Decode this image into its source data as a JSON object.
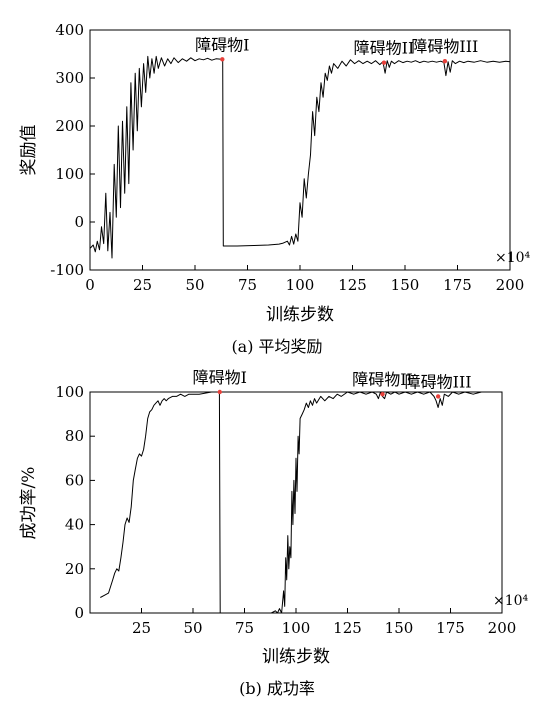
{
  "chart_data": [
    {
      "type": "line",
      "caption": "(a) 平均奖励",
      "xlabel": "训练步数",
      "ylabel": "奖励值",
      "x_multiplier": "×10⁴",
      "xlim": [
        0,
        200
      ],
      "ylim": [
        -100,
        400
      ],
      "xticks": [
        0,
        25,
        50,
        75,
        100,
        125,
        150,
        175,
        200
      ],
      "yticks": [
        -100,
        0,
        100,
        200,
        300,
        400
      ],
      "grid": false,
      "series": [
        {
          "color": "#000000",
          "points": [
            [
              0,
              -55
            ],
            [
              1.5,
              -48
            ],
            [
              2.5,
              -62
            ],
            [
              3.5,
              -40
            ],
            [
              4.5,
              -58
            ],
            [
              5.5,
              -10
            ],
            [
              6.5,
              -45
            ],
            [
              7.5,
              60
            ],
            [
              8.5,
              -60
            ],
            [
              9.5,
              20
            ],
            [
              10.5,
              -75
            ],
            [
              11.5,
              120
            ],
            [
              12.5,
              10
            ],
            [
              13.5,
              200
            ],
            [
              14.5,
              30
            ],
            [
              15.5,
              210
            ],
            [
              16.5,
              60
            ],
            [
              17.5,
              240
            ],
            [
              18.5,
              80
            ],
            [
              19.5,
              290
            ],
            [
              20.5,
              150
            ],
            [
              21.5,
              310
            ],
            [
              22.5,
              190
            ],
            [
              23.5,
              320
            ],
            [
              24.5,
              240
            ],
            [
              25.5,
              330
            ],
            [
              26.5,
              270
            ],
            [
              27.5,
              345
            ],
            [
              28.5,
              300
            ],
            [
              29.5,
              340
            ],
            [
              30.5,
              310
            ],
            [
              31.5,
              345
            ],
            [
              32.5,
              320
            ],
            [
              34,
              342
            ],
            [
              35.5,
              325
            ],
            [
              37,
              340
            ],
            [
              38.5,
              330
            ],
            [
              40,
              342
            ],
            [
              42,
              332
            ],
            [
              44,
              340
            ],
            [
              46,
              335
            ],
            [
              48,
              342
            ],
            [
              50,
              336
            ],
            [
              52,
              340
            ],
            [
              54,
              338
            ],
            [
              56,
              341
            ],
            [
              58,
              337
            ],
            [
              60,
              340
            ],
            [
              62.5,
              339
            ],
            [
              63.2,
              339
            ],
            [
              63.5,
              -50
            ],
            [
              70,
              -50
            ],
            [
              78,
              -49
            ],
            [
              85,
              -48
            ],
            [
              90,
              -46
            ],
            [
              92,
              -44
            ],
            [
              94,
              -40
            ],
            [
              95,
              -48
            ],
            [
              96,
              -30
            ],
            [
              97,
              -46
            ],
            [
              98,
              -25
            ],
            [
              99,
              -40
            ],
            [
              100,
              40
            ],
            [
              101,
              10
            ],
            [
              102,
              90
            ],
            [
              103,
              50
            ],
            [
              104,
              100
            ],
            [
              105,
              140
            ],
            [
              106,
              230
            ],
            [
              107,
              180
            ],
            [
              108,
              260
            ],
            [
              109,
              230
            ],
            [
              110,
              290
            ],
            [
              111,
              260
            ],
            [
              112,
              310
            ],
            [
              113,
              295
            ],
            [
              114,
              325
            ],
            [
              115,
              310
            ],
            [
              116,
              330
            ],
            [
              118,
              320
            ],
            [
              120,
              335
            ],
            [
              122,
              325
            ],
            [
              124,
              338
            ],
            [
              126,
              330
            ],
            [
              128,
              336
            ],
            [
              130,
              330
            ],
            [
              132,
              335
            ],
            [
              134,
              330
            ],
            [
              136,
              336
            ],
            [
              138,
              328
            ],
            [
              139.5,
              334
            ],
            [
              140.5,
              310
            ],
            [
              141.5,
              336
            ],
            [
              142.5,
              322
            ],
            [
              143.5,
              335
            ],
            [
              145,
              330
            ],
            [
              147,
              336
            ],
            [
              149,
              332
            ],
            [
              151,
              335
            ],
            [
              153,
              333
            ],
            [
              155,
              336
            ],
            [
              157,
              332
            ],
            [
              159,
              335
            ],
            [
              161,
              333
            ],
            [
              163,
              335
            ],
            [
              165,
              333
            ],
            [
              167,
              335
            ],
            [
              168.5,
              332
            ],
            [
              169.5,
              305
            ],
            [
              170.5,
              334
            ],
            [
              171.5,
              312
            ],
            [
              172.5,
              336
            ],
            [
              174,
              330
            ],
            [
              176,
              335
            ],
            [
              178,
              332
            ],
            [
              180,
              335
            ],
            [
              183,
              333
            ],
            [
              186,
              336
            ],
            [
              189,
              333
            ],
            [
              192,
              335
            ],
            [
              195,
              333
            ],
            [
              198,
              335
            ],
            [
              200,
              334
            ]
          ]
        }
      ],
      "annotations": [
        {
          "label": "障碍物I",
          "x": 63,
          "y": 339
        },
        {
          "label": "障碍物II",
          "x": 140,
          "y": 332
        },
        {
          "label": "障碍物III",
          "x": 169,
          "y": 335
        }
      ],
      "marker_color": "#e8403a"
    },
    {
      "type": "line",
      "caption": "(b) 成功率",
      "xlabel": "训练步数",
      "ylabel": "成功率/%",
      "x_multiplier": "×10⁴",
      "xlim": [
        0,
        200
      ],
      "ylim": [
        0,
        100
      ],
      "xticks": [
        25,
        50,
        75,
        100,
        125,
        150,
        175,
        200
      ],
      "yticks": [
        0,
        20,
        40,
        60,
        80,
        100
      ],
      "grid": false,
      "series": [
        {
          "color": "#000000",
          "points": [
            [
              5,
              7
            ],
            [
              7,
              8
            ],
            [
              9,
              9
            ],
            [
              10,
              12
            ],
            [
              11,
              15
            ],
            [
              12,
              18
            ],
            [
              13,
              20
            ],
            [
              14,
              19
            ],
            [
              15,
              25
            ],
            [
              16,
              32
            ],
            [
              17,
              40
            ],
            [
              18,
              43
            ],
            [
              19,
              41
            ],
            [
              20,
              48
            ],
            [
              21,
              60
            ],
            [
              22,
              65
            ],
            [
              23,
              70
            ],
            [
              24,
              72
            ],
            [
              25,
              71
            ],
            [
              26,
              74
            ],
            [
              27,
              80
            ],
            [
              28,
              88
            ],
            [
              29,
              91
            ],
            [
              30,
              92
            ],
            [
              31,
              94
            ],
            [
              32,
              95
            ],
            [
              33,
              96
            ],
            [
              34,
              94
            ],
            [
              35,
              96
            ],
            [
              36,
              97
            ],
            [
              37,
              96
            ],
            [
              38,
              97
            ],
            [
              40,
              98
            ],
            [
              42,
              98
            ],
            [
              44,
              99
            ],
            [
              46,
              98
            ],
            [
              48,
              99
            ],
            [
              50,
              99
            ],
            [
              53,
              99
            ],
            [
              56,
              99.5
            ],
            [
              59,
              100
            ],
            [
              61,
              100
            ],
            [
              62.8,
              100
            ],
            [
              63.2,
              0
            ],
            [
              70,
              0
            ],
            [
              80,
              0
            ],
            [
              88,
              0
            ],
            [
              90,
              1
            ],
            [
              91,
              0
            ],
            [
              92,
              2
            ],
            [
              93,
              0
            ],
            [
              94,
              10
            ],
            [
              94.5,
              3
            ],
            [
              95,
              25
            ],
            [
              95.5,
              15
            ],
            [
              96,
              35
            ],
            [
              96.5,
              20
            ],
            [
              97,
              30
            ],
            [
              97.5,
              25
            ],
            [
              98,
              55
            ],
            [
              98.5,
              40
            ],
            [
              99,
              60
            ],
            [
              99.5,
              45
            ],
            [
              100,
              70
            ],
            [
              100.5,
              55
            ],
            [
              101,
              80
            ],
            [
              101.5,
              72
            ],
            [
              102,
              88
            ],
            [
              103,
              90
            ],
            [
              104,
              92
            ],
            [
              105,
              95
            ],
            [
              106,
              93
            ],
            [
              107,
              96
            ],
            [
              108,
              94
            ],
            [
              109,
              97
            ],
            [
              110,
              95
            ],
            [
              112,
              98
            ],
            [
              114,
              96
            ],
            [
              116,
              98
            ],
            [
              118,
              97
            ],
            [
              120,
              99
            ],
            [
              122,
              98
            ],
            [
              125,
              100
            ],
            [
              128,
              99
            ],
            [
              131,
              100
            ],
            [
              134,
              99
            ],
            [
              137,
              100
            ],
            [
              139,
              99
            ],
            [
              140,
              97
            ],
            [
              141,
              100
            ],
            [
              142,
              98
            ],
            [
              143,
              97
            ],
            [
              144,
              100
            ],
            [
              146,
              99
            ],
            [
              148,
              100
            ],
            [
              150,
              99
            ],
            [
              153,
              100
            ],
            [
              156,
              99
            ],
            [
              159,
              100
            ],
            [
              162,
              99
            ],
            [
              165,
              100
            ],
            [
              167,
              98
            ],
            [
              168,
              96
            ],
            [
              169,
              93
            ],
            [
              170,
              97
            ],
            [
              171,
              94
            ],
            [
              172,
              99
            ],
            [
              174,
              98
            ],
            [
              176,
              100
            ],
            [
              179,
              99
            ],
            [
              182,
              100
            ],
            [
              186,
              99
            ],
            [
              190,
              100
            ],
            [
              195,
              100
            ],
            [
              200,
              100
            ]
          ]
        }
      ],
      "annotations": [
        {
          "label": "障碍物I",
          "x": 63,
          "y": 100
        },
        {
          "label": "障碍物II",
          "x": 142,
          "y": 99
        },
        {
          "label": "障碍物III",
          "x": 169,
          "y": 98
        }
      ],
      "marker_color": "#e8403a"
    }
  ]
}
